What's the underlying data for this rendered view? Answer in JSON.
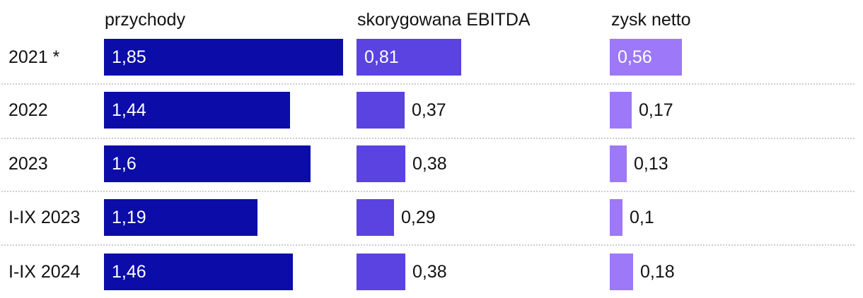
{
  "chart_data": {
    "type": "bar",
    "orientation": "horizontal",
    "title": "",
    "xlabel": "",
    "ylabel": "",
    "xlim": [
      0,
      1.95
    ],
    "grid": false,
    "legend_position": "top-column-headers",
    "row_separator_style": "dotted",
    "categories": [
      "2021 *",
      "2022",
      "2023",
      "I-IX 2023",
      "I-IX 2024"
    ],
    "series": [
      {
        "name": "przychody",
        "color": "#0c0ca8",
        "values": [
          1.85,
          1.44,
          1.6,
          1.19,
          1.46
        ],
        "labels": [
          "1,85",
          "1,44",
          "1,6",
          "1,19",
          "1,46"
        ]
      },
      {
        "name": "skorygowana EBITDA",
        "color": "#5a43e1",
        "values": [
          0.81,
          0.37,
          0.38,
          0.29,
          0.38
        ],
        "labels": [
          "0,81",
          "0,37",
          "0,38",
          "0,29",
          "0,38"
        ]
      },
      {
        "name": "zysk netto",
        "color": "#9d78f8",
        "values": [
          0.56,
          0.17,
          0.13,
          0.1,
          0.18
        ],
        "labels": [
          "0,56",
          "0,17",
          "0,13",
          "0,1",
          "0,18"
        ]
      }
    ],
    "value_label_colors": {
      "inside": "#ffffff",
      "outside": "#121212"
    }
  }
}
